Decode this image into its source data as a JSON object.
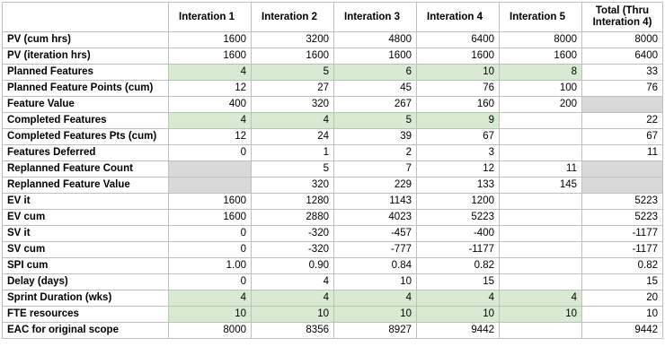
{
  "columns": [
    "",
    "Interation 1",
    "Interation 2",
    "Interation 3",
    "Interation 4",
    "Interation 5",
    "Total (Thru Interation 4)"
  ],
  "rows": [
    {
      "label": "PV (cum hrs)",
      "values": [
        "1600",
        "3200",
        "4800",
        "6400",
        "8000",
        "8000"
      ]
    },
    {
      "label": "PV (iteration hrs)",
      "values": [
        "1600",
        "1600",
        "1600",
        "1600",
        "1600",
        "6400"
      ]
    },
    {
      "label": "Planned Features",
      "values": [
        "4",
        "5",
        "6",
        "10",
        "8",
        "33"
      ]
    },
    {
      "label": "Planned Feature Points (cum)",
      "values": [
        "12",
        "27",
        "45",
        "76",
        "100",
        "76"
      ]
    },
    {
      "label": "Feature Value",
      "values": [
        "400",
        "320",
        "267",
        "160",
        "200",
        ""
      ]
    },
    {
      "label": "Completed Features",
      "values": [
        "4",
        "4",
        "5",
        "9",
        "",
        "22"
      ]
    },
    {
      "label": "Completed Features Pts (cum)",
      "values": [
        "12",
        "24",
        "39",
        "67",
        "",
        "67"
      ]
    },
    {
      "label": "Features Deferred",
      "values": [
        "0",
        "1",
        "2",
        "3",
        "",
        "11"
      ]
    },
    {
      "label": "Replanned Feature Count",
      "values": [
        "",
        "5",
        "7",
        "12",
        "11",
        ""
      ]
    },
    {
      "label": "Replanned Feature Value",
      "values": [
        "",
        "320",
        "229",
        "133",
        "145",
        ""
      ]
    },
    {
      "label": "EV it",
      "values": [
        "1600",
        "1280",
        "1143",
        "1200",
        "",
        "5223"
      ]
    },
    {
      "label": "EV cum",
      "values": [
        "1600",
        "2880",
        "4023",
        "5223",
        "",
        "5223"
      ]
    },
    {
      "label": "SV it",
      "values": [
        "0",
        "-320",
        "-457",
        "-400",
        "",
        "-1177"
      ]
    },
    {
      "label": "SV cum",
      "values": [
        "0",
        "-320",
        "-777",
        "-1177",
        "",
        "-1177"
      ]
    },
    {
      "label": "SPI cum",
      "values": [
        "1.00",
        "0.90",
        "0.84",
        "0.82",
        "",
        "0.82"
      ]
    },
    {
      "label": "Delay (days)",
      "values": [
        "0",
        "4",
        "10",
        "15",
        "",
        "15"
      ]
    },
    {
      "label": "Sprint Duration (wks)",
      "values": [
        "4",
        "4",
        "4",
        "4",
        "4",
        "20"
      ]
    },
    {
      "label": "FTE resources",
      "values": [
        "10",
        "10",
        "10",
        "10",
        "10",
        "10"
      ]
    },
    {
      "label": "EAC for original scope",
      "values": [
        "8000",
        "8356",
        "8927",
        "9442",
        "",
        "9442"
      ]
    }
  ],
  "colors": {
    "highlight_green": "#d9ead3",
    "gray_cell": "#d9d9d9",
    "grid": "#bfbfbf"
  }
}
